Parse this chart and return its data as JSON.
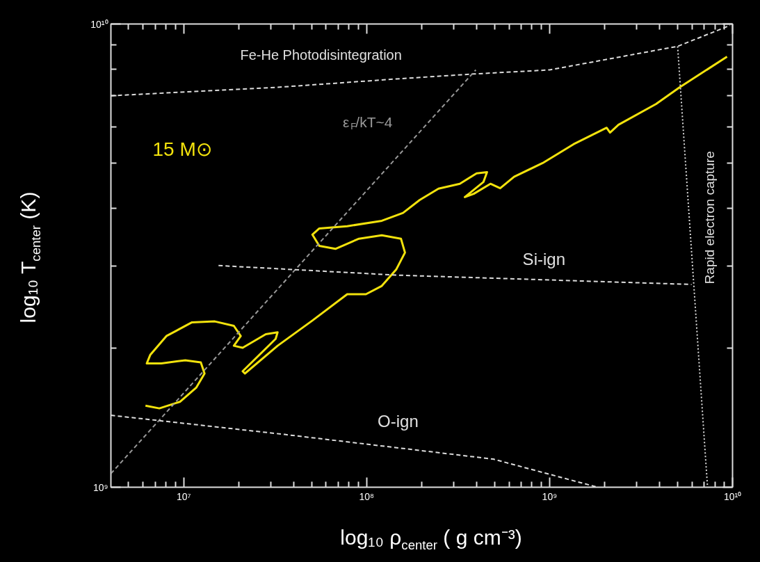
{
  "chart_data": {
    "type": "line",
    "xlabel": "log₁₀ ρ$_{center}$ ( g cm⁻³)",
    "ylabel": "log₁₀ T$_{center}$ (K)",
    "log": "xy",
    "grid": false,
    "legend": false,
    "xlim": [
      4000000.0,
      10000000000.0
    ],
    "ylim": [
      1000000000.0,
      10000000000.0
    ],
    "xticks": [
      {
        "value": 5000000.0,
        "label": null
      },
      {
        "value": 6000000.0,
        "label": null
      },
      {
        "value": 7000000.0,
        "label": null
      },
      {
        "value": 8000000.0,
        "label": null
      },
      {
        "value": 9000000.0,
        "label": null
      },
      {
        "value": 10000000.0,
        "label": "10⁷"
      },
      {
        "value": 20000000.0,
        "label": null
      },
      {
        "value": 30000000.0,
        "label": null
      },
      {
        "value": 40000000.0,
        "label": null
      },
      {
        "value": 50000000.0,
        "label": null
      },
      {
        "value": 60000000.0,
        "label": null
      },
      {
        "value": 70000000.0,
        "label": null
      },
      {
        "value": 80000000.0,
        "label": null
      },
      {
        "value": 90000000.0,
        "label": null
      },
      {
        "value": 100000000.0,
        "label": "10⁸"
      },
      {
        "value": 200000000.0,
        "label": null
      },
      {
        "value": 300000000.0,
        "label": null
      },
      {
        "value": 400000000.0,
        "label": null
      },
      {
        "value": 500000000.0,
        "label": null
      },
      {
        "value": 600000000.0,
        "label": null
      },
      {
        "value": 700000000.0,
        "label": null
      },
      {
        "value": 800000000.0,
        "label": null
      },
      {
        "value": 900000000.0,
        "label": null
      },
      {
        "value": 1000000000.0,
        "label": "10⁹"
      },
      {
        "value": 2000000000.0,
        "label": null
      },
      {
        "value": 3000000000.0,
        "label": null
      },
      {
        "value": 4000000000.0,
        "label": null
      },
      {
        "value": 5000000000.0,
        "label": null
      },
      {
        "value": 6000000000.0,
        "label": null
      },
      {
        "value": 7000000000.0,
        "label": null
      },
      {
        "value": 8000000000.0,
        "label": null
      },
      {
        "value": 9000000000.0,
        "label": null
      },
      {
        "value": 10000000000.0,
        "label": "10¹⁰"
      }
    ],
    "yticks": [
      {
        "value": 1000000000.0,
        "label": "10⁹"
      },
      {
        "value": 2000000000.0,
        "label": null
      },
      {
        "value": 3000000000.0,
        "label": null
      },
      {
        "value": 4000000000.0,
        "label": null
      },
      {
        "value": 5000000000.0,
        "label": null
      },
      {
        "value": 6000000000.0,
        "label": null
      },
      {
        "value": 7000000000.0,
        "label": null
      },
      {
        "value": 8000000000.0,
        "label": null
      },
      {
        "value": 9000000000.0,
        "label": null
      },
      {
        "value": 10000000000.0,
        "label": "10¹⁰"
      }
    ],
    "series": [
      {
        "name": "15 M⊙",
        "color": "#f2e20c",
        "line_style": "solid",
        "x": [
          6180000.0,
          7360000.0,
          9570000.0,
          11700000.0,
          13000000.0,
          12400000.0,
          10200000.0,
          7550000.0,
          6280000.0,
          6560000.0,
          8040000.0,
          11100000.0,
          14800000.0,
          18800000.0,
          20500000.0,
          18800000.0,
          21000000.0,
          28100000.0,
          32600000.0,
          31800000.0,
          21000000.0,
          21600000.0,
          32600000.0,
          50500000.0,
          78300000.0,
          99100000.0,
          121000000.0,
          145000000.0,
          162000000.0,
          154000000.0,
          121000000.0,
          90800000.0,
          67500000.0,
          55100000.0,
          50500000.0,
          55100000.0,
          78300000.0,
          121000000.0,
          158000000.0,
          195000000.0,
          247000000.0,
          323000000.0,
          399000000.0,
          455000000.0,
          435000000.0,
          344000000.0,
          385000000.0,
          475000000.0,
          537000000.0,
          640000000.0,
          916000000.0,
          1350000000.0,
          2050000000.0,
          2140000000.0,
          2380000000.0,
          3820000000.0,
          5140000000.0,
          9330000000.0
        ],
        "values": [
          1500000000.0,
          1480000000.0,
          1530000000.0,
          1640000000.0,
          1760000000.0,
          1860000000.0,
          1880000000.0,
          1850000000.0,
          1850000000.0,
          1930000000.0,
          2120000000.0,
          2270000000.0,
          2280000000.0,
          2230000000.0,
          2120000000.0,
          2020000000.0,
          2000000000.0,
          2140000000.0,
          2160000000.0,
          2090000000.0,
          1780000000.0,
          1760000000.0,
          2020000000.0,
          2290000000.0,
          2610000000.0,
          2610000000.0,
          2720000000.0,
          2950000000.0,
          3210000000.0,
          3440000000.0,
          3500000000.0,
          3440000000.0,
          3270000000.0,
          3320000000.0,
          3510000000.0,
          3620000000.0,
          3660000000.0,
          3760000000.0,
          3910000000.0,
          4170000000.0,
          4410000000.0,
          4520000000.0,
          4760000000.0,
          4790000000.0,
          4560000000.0,
          4230000000.0,
          4300000000.0,
          4520000000.0,
          4420000000.0,
          4680000000.0,
          5010000000.0,
          5500000000.0,
          5970000000.0,
          5830000000.0,
          6060000000.0,
          6720000000.0,
          7300000000.0,
          8500000000.0
        ]
      },
      {
        "color": "#dddddd",
        "line_style": "dashed",
        "x": [
          4000000.0,
          32600000.0,
          145000000.0,
          385000000.0,
          1000000000.0,
          5010000000.0,
          9700000000.0
        ],
        "values": [
          7000000000.0,
          7300000000.0,
          7610000000.0,
          7800000000.0,
          7960000000.0,
          8950000000.0,
          9930000000.0
        ]
      },
      {
        "color": "#999999",
        "line_style": "dashed",
        "x": [
          4000000.0,
          395000000.0
        ],
        "values": [
          1070000000.0,
          7960000000.0
        ]
      },
      {
        "color": "#dddddd",
        "line_style": "dashed",
        "x": [
          15500000.0,
          145000000.0,
          5970000000.0
        ],
        "values": [
          3010000000.0,
          2870000000.0,
          2740000000.0
        ]
      },
      {
        "color": "#dddddd",
        "line_style": "dashed",
        "x": [
          4000000.0,
          35600000.0,
          492000000.0,
          1830000000.0
        ],
        "values": [
          1430000000.0,
          1300000000.0,
          1150000000.0,
          1000000000.0
        ]
      },
      {
        "color": "#dddddd",
        "line_style": "dotted",
        "x": [
          5010000000.0,
          7300000000.0
        ],
        "values": [
          8950000000.0,
          1000000000.0
        ]
      }
    ],
    "annotations": [
      "Fe-He Photodisintegration",
      "ε$_{F}$/kT~4",
      "Si-ign",
      "O-ign",
      "Rapid electron capture"
    ]
  }
}
